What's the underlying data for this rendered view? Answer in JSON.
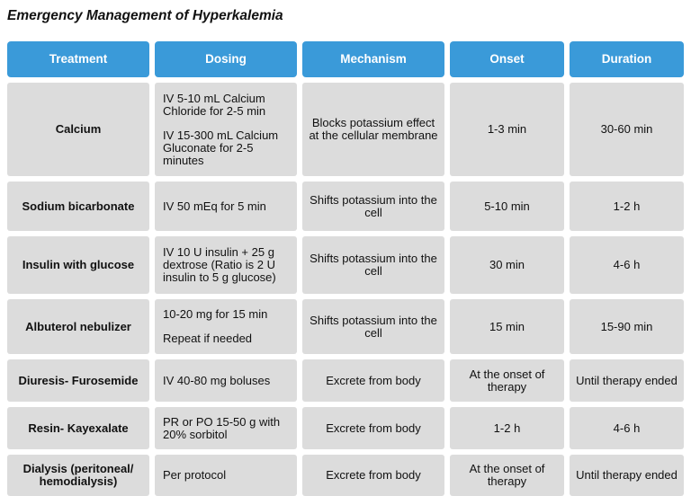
{
  "title": "Emergency Management of Hyperkalemia",
  "headers": {
    "treatment": "Treatment",
    "dosing": "Dosing",
    "mechanism": "Mechanism",
    "onset": "Onset",
    "duration": "Duration"
  },
  "rows": [
    {
      "treatment": "Calcium",
      "dosing": [
        "IV 5-10 mL Calcium Chloride for 2-5 min",
        "IV 15-300 mL Calcium Gluconate for 2-5 minutes"
      ],
      "mechanism": "Blocks potassium effect at the cellular membrane",
      "onset": "1-3 min",
      "duration": "30-60 min"
    },
    {
      "treatment": "Sodium bicarbonate",
      "dosing": [
        "IV 50 mEq for 5 min"
      ],
      "mechanism": "Shifts potassium into the cell",
      "onset": "5-10 min",
      "duration": "1-2 h"
    },
    {
      "treatment": "Insulin with glucose",
      "dosing": [
        "IV 10 U insulin + 25 g dextrose (Ratio is 2 U insulin to 5 g glucose)"
      ],
      "mechanism": "Shifts potassium into the cell",
      "onset": "30 min",
      "duration": "4-6 h"
    },
    {
      "treatment": "Albuterol nebulizer",
      "dosing": [
        "10-20 mg for 15 min",
        "Repeat if needed"
      ],
      "mechanism": "Shifts potassium into the cell",
      "onset": "15 min",
      "duration": "15-90 min"
    },
    {
      "treatment": "Diuresis- Furosemide",
      "dosing": [
        "IV 40-80 mg boluses"
      ],
      "mechanism": "Excrete from body",
      "onset": "At the onset of therapy",
      "duration": "Until therapy ended"
    },
    {
      "treatment": "Resin- Kayexalate",
      "dosing": [
        "PR or PO 15-50 g with 20% sorbitol"
      ],
      "mechanism": "Excrete from body",
      "onset": "1-2 h",
      "duration": "4-6 h"
    },
    {
      "treatment": "Dialysis (peritoneal/ hemodialysis)",
      "dosing": [
        "Per protocol"
      ],
      "mechanism": "Excrete from body",
      "onset": "At the onset of therapy",
      "duration": "Until therapy ended"
    }
  ]
}
